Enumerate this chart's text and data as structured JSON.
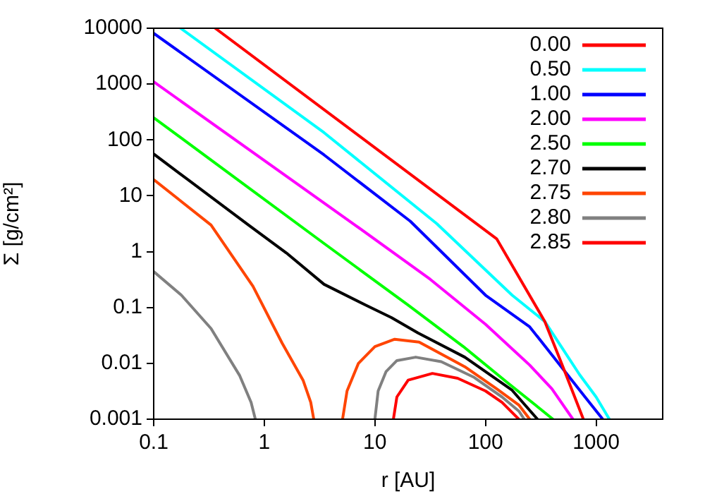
{
  "chart_data": {
    "type": "line",
    "xlabel": "r [AU]",
    "ylabel": "Σ [g/cm²]",
    "log": "xy",
    "legend": "top right",
    "marker": "none",
    "line_style": "solid",
    "xlim": [
      0.1,
      4000
    ],
    "xticks": [
      0.1,
      1,
      10,
      100,
      1000
    ],
    "ylim": [
      0.001,
      10000
    ],
    "yticks": [
      0.001,
      0.01,
      0.1,
      1,
      10,
      100,
      1000,
      10000
    ],
    "series": [
      {
        "name": "0.00",
        "color": "#ff0000",
        "x": [
          0.36,
          126,
          344,
          501,
          767
        ],
        "values": [
          10000,
          1.7,
          0.056,
          0.0087,
          0.001
        ]
      },
      {
        "name": "0.50",
        "color": "#00ffff",
        "x": [
          0.175,
          3.47,
          36.3,
          100,
          174,
          344,
          708,
          1000,
          1318
        ],
        "values": [
          10000,
          135,
          3.16,
          0.47,
          0.166,
          0.056,
          0.0063,
          0.0025,
          0.001
        ]
      },
      {
        "name": "1.00",
        "color": "#0000ff",
        "x": [
          0.1,
          3.47,
          20.9,
          100,
          251,
          484,
          794,
          1148
        ],
        "values": [
          8100,
          54,
          3.5,
          0.166,
          0.045,
          0.0087,
          0.0025,
          0.001
        ]
      },
      {
        "name": "2.00",
        "color": "#ff00ff",
        "x": [
          0.1,
          6.6,
          31.6,
          100,
          251,
          398,
          617
        ],
        "values": [
          1100,
          3.0,
          0.32,
          0.05,
          0.0093,
          0.0035,
          0.001
        ]
      },
      {
        "name": "2.50",
        "color": "#00ff00",
        "x": [
          0.1,
          3.47,
          20,
          63,
          158,
          282,
          407
        ],
        "values": [
          250,
          1.4,
          0.11,
          0.02,
          0.0045,
          0.0018,
          0.001
        ]
      },
      {
        "name": "2.70",
        "color": "#000000",
        "x": [
          0.1,
          0.72,
          1.58,
          3.47,
          8.3,
          14.1,
          24.5,
          65,
          174,
          295
        ],
        "values": [
          56,
          3.0,
          0.95,
          0.26,
          0.11,
          0.066,
          0.035,
          0.0129,
          0.0033,
          0.001
        ]
      },
      {
        "name": "2.75",
        "color": "#ff4500",
        "x": [
          0.1,
          0.33,
          0.79,
          1.45,
          2.24,
          2.63,
          2.8,
          4,
          5.1,
          5.6,
          7.1,
          10,
          15.1,
          25.1,
          65,
          126,
          200,
          251
        ],
        "values": [
          19.5,
          3.0,
          0.24,
          0.023,
          0.005,
          0.002,
          0.001,
          null,
          0.001,
          0.0032,
          0.01,
          0.02,
          0.027,
          0.024,
          0.0087,
          0.0035,
          0.0018,
          0.001
        ]
      },
      {
        "name": "2.80",
        "color": "#808080",
        "x": [
          0.1,
          0.178,
          0.33,
          0.6,
          0.76,
          0.83,
          3,
          10,
          10.7,
          12.6,
          15.8,
          23.4,
          39.8,
          79,
          141,
          200,
          224
        ],
        "values": [
          0.44,
          0.166,
          0.042,
          0.006,
          0.002,
          0.001,
          null,
          0.001,
          0.0032,
          0.0071,
          0.0112,
          0.0129,
          0.0107,
          0.0056,
          0.0025,
          0.0014,
          0.001
        ]
      },
      {
        "name": "2.85",
        "color": "#ff0000",
        "x": [
          14.7,
          15.8,
          20,
          33.1,
          56,
          100,
          141,
          200
        ],
        "values": [
          0.001,
          0.0025,
          0.005,
          0.0066,
          0.0054,
          0.0032,
          0.002,
          0.001
        ]
      }
    ]
  }
}
